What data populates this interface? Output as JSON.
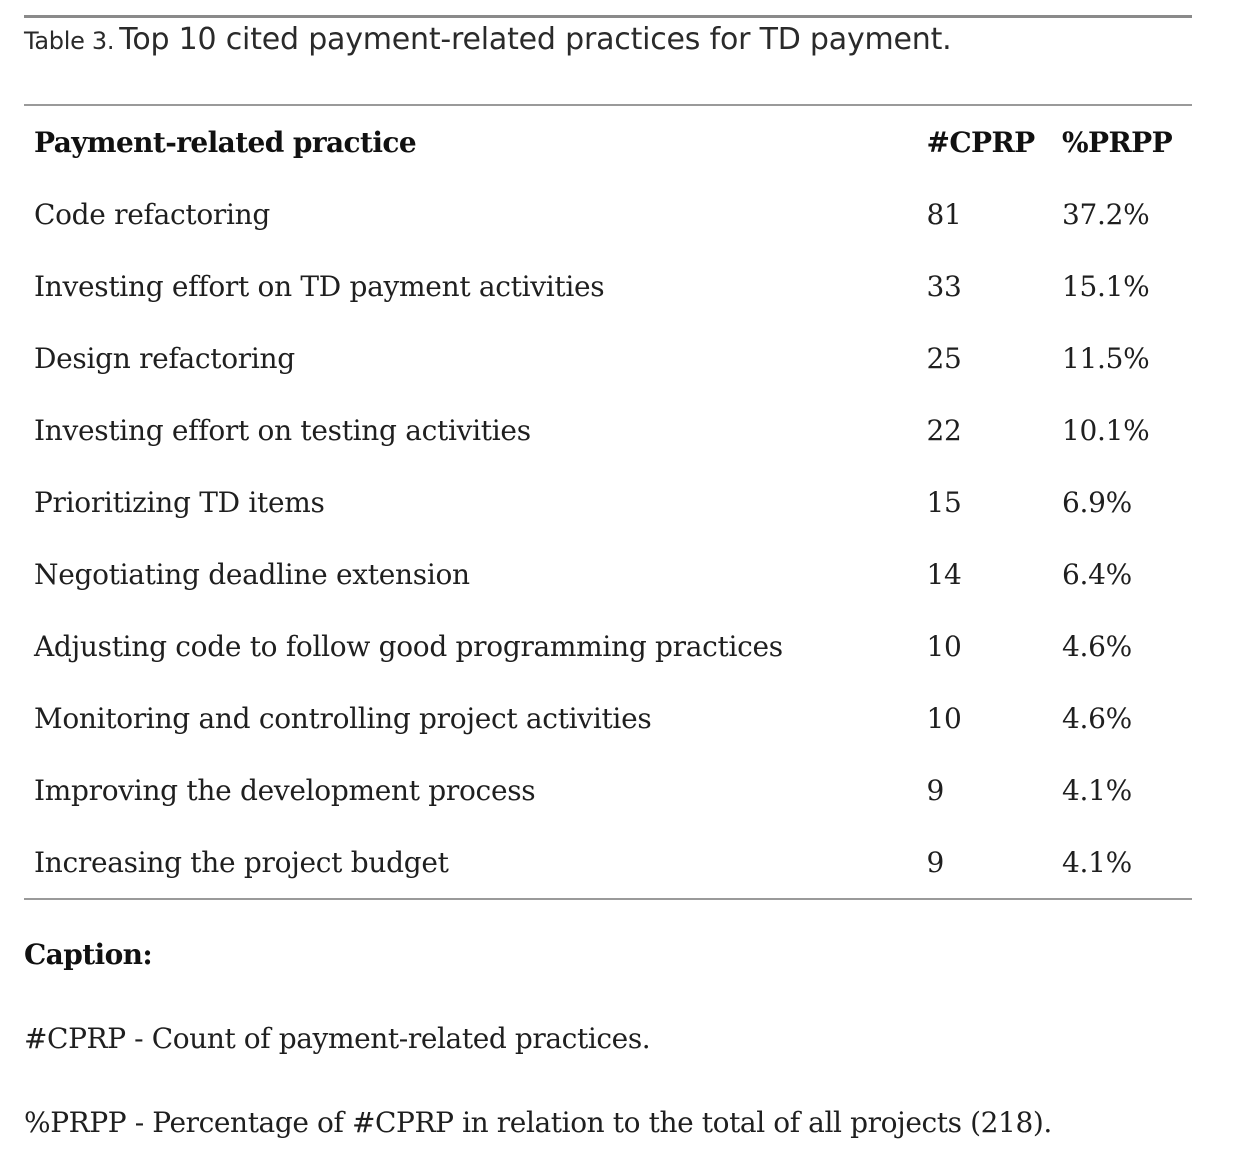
{
  "table": {
    "label": "Table 3.",
    "title": "Top 10 cited payment-related practices for TD payment.",
    "headers": [
      "Payment-related practice",
      "#CPRP",
      "%PRPP"
    ],
    "rows": [
      {
        "practice": "Code refactoring",
        "cprp": "81",
        "prpp": "37.2%"
      },
      {
        "practice": "Investing effort on TD payment activities",
        "cprp": "33",
        "prpp": "15.1%"
      },
      {
        "practice": "Design refactoring",
        "cprp": "25",
        "prpp": "11.5%"
      },
      {
        "practice": "Investing effort on testing activities",
        "cprp": "22",
        "prpp": "10.1%"
      },
      {
        "practice": "Prioritizing TD items",
        "cprp": "15",
        "prpp": "6.9%"
      },
      {
        "practice": "Negotiating deadline extension",
        "cprp": "14",
        "prpp": "6.4%"
      },
      {
        "practice": "Adjusting code to follow good programming practices",
        "cprp": "10",
        "prpp": "4.6%"
      },
      {
        "practice": "Monitoring and controlling project activities",
        "cprp": "10",
        "prpp": "4.6%"
      },
      {
        "practice": "Improving the development process",
        "cprp": "9",
        "prpp": "4.1%"
      },
      {
        "practice": "Increasing the project budget",
        "cprp": "9",
        "prpp": "4.1%"
      }
    ]
  },
  "caption": {
    "heading": "Caption:",
    "lines": [
      "#CPRP - Count of payment-related practices.",
      "%PRPP - Percentage of #CPRP in relation to the total of all projects (218)."
    ]
  }
}
